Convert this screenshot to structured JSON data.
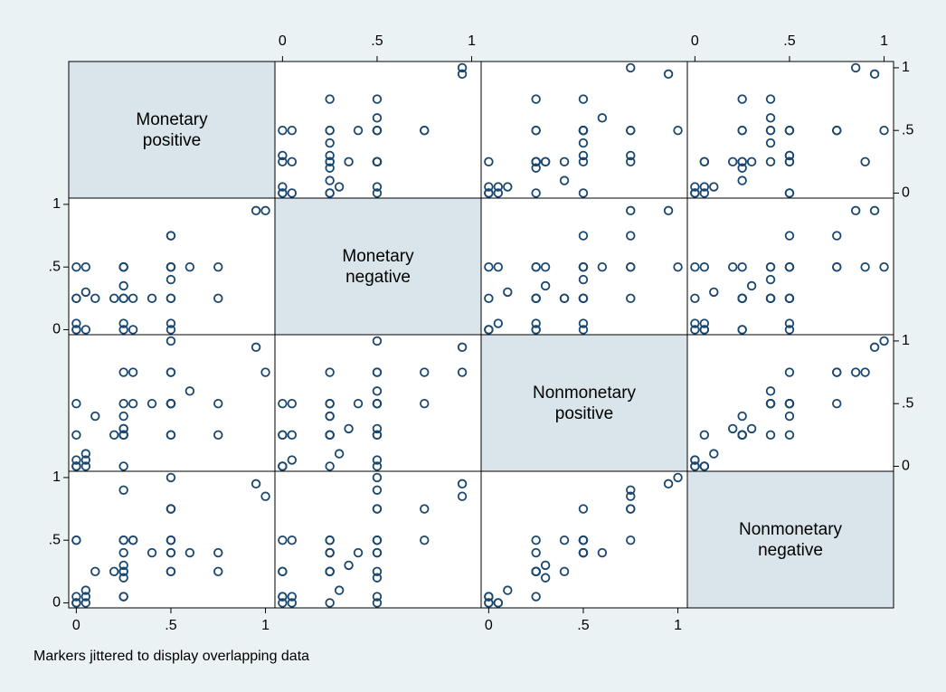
{
  "chart_data": {
    "type": "scatter_matrix",
    "variables": [
      {
        "name": "Monetary positive",
        "values": [
          0.95,
          0,
          0,
          0,
          0.05,
          0.25,
          0.25,
          0.25,
          0.5,
          0.5,
          0.5,
          0.5,
          0.25,
          0.5,
          0.75,
          0.5,
          0.25,
          0.3,
          0.4,
          0.25,
          0.2,
          0,
          0.5,
          0,
          0.3,
          0.6,
          0.25,
          0.05,
          0.5,
          0.5,
          1,
          0.25,
          0,
          0.1,
          0.5,
          0.25,
          0.05,
          0.75,
          0.5,
          0.25
        ]
      },
      {
        "name": "Monetary negative",
        "values": [
          0.95,
          0,
          0,
          0.05,
          0,
          0,
          0.25,
          0.5,
          0.5,
          0.25,
          0.5,
          0,
          0.25,
          0.75,
          0.5,
          0.5,
          0.35,
          0.25,
          0.25,
          0.5,
          0.25,
          0.25,
          0.5,
          0.5,
          0,
          0.5,
          0.05,
          0.3,
          0.25,
          0.75,
          0.95,
          0.5,
          0.25,
          0.25,
          0.05,
          0.5,
          0.5,
          0.25,
          0.4,
          0.5
        ]
      },
      {
        "name": "Nonmonetary positive",
        "values": [
          0.95,
          0,
          0,
          0.05,
          0,
          0.25,
          0.25,
          0.5,
          0.5,
          0.5,
          0.75,
          0.25,
          0.4,
          0.5,
          0.25,
          1,
          0.3,
          0.75,
          0.5,
          0.25,
          0.25,
          0,
          0.5,
          0.5,
          0.5,
          0.6,
          0.25,
          0.1,
          0.25,
          0.75,
          0.75,
          0.75,
          0.25,
          0.4,
          0.5,
          0.3,
          0.05,
          0.5,
          0.5,
          0
        ]
      },
      {
        "name": "Nonmonetary negative",
        "values": [
          0.95,
          0,
          0.05,
          0,
          0.05,
          0.25,
          0.25,
          0.5,
          0.5,
          0.4,
          0.75,
          0.25,
          0.5,
          0.5,
          0.25,
          1,
          0.3,
          0.5,
          0.4,
          0.4,
          0.25,
          0,
          0.75,
          0.5,
          0.5,
          0.4,
          0.05,
          0.1,
          0.25,
          0.75,
          0.85,
          0.9,
          0.5,
          0.25,
          0.5,
          0.2,
          0,
          0.4,
          0.4,
          0.05
        ]
      }
    ],
    "xlim": [
      -0.04,
      1.05
    ],
    "ylim": [
      -0.04,
      1.05
    ],
    "xticks": [
      0,
      {
        "value": 0.5,
        "label": ".5"
      },
      1
    ],
    "yticks": [
      0,
      {
        "value": 0.5,
        "label": ".5"
      },
      1
    ],
    "marker_color": "#1a476f",
    "note": "Markers jittered to display overlapping data"
  }
}
